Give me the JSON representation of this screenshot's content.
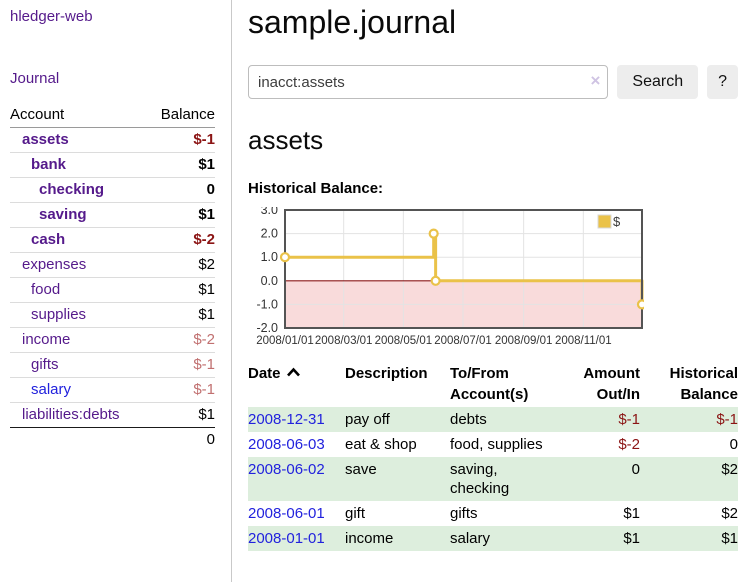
{
  "app": {
    "title": "hledger-web"
  },
  "sidebar": {
    "journal_link": "Journal",
    "accounts": {
      "header_account": "Account",
      "header_balance": "Balance",
      "rows": [
        {
          "name": "assets",
          "level": 1,
          "bold": true,
          "link": "purple",
          "balance": "$-1",
          "tone": "neg-strong"
        },
        {
          "name": "bank",
          "level": 2,
          "bold": true,
          "link": "purple",
          "balance": "$1",
          "tone": "plain"
        },
        {
          "name": "checking",
          "level": 3,
          "bold": true,
          "link": "purple",
          "balance": "0",
          "tone": "plain"
        },
        {
          "name": "saving",
          "level": 3,
          "bold": true,
          "link": "purple",
          "balance": "$1",
          "tone": "plain"
        },
        {
          "name": "cash",
          "level": 2,
          "bold": true,
          "link": "purple",
          "balance": "$-2",
          "tone": "neg-strong"
        },
        {
          "name": "expenses",
          "level": 1,
          "bold": false,
          "link": "purple",
          "balance": "$2",
          "tone": "plain"
        },
        {
          "name": "food",
          "level": 2,
          "bold": false,
          "link": "purple",
          "balance": "$1",
          "tone": "plain"
        },
        {
          "name": "supplies",
          "level": 2,
          "bold": false,
          "link": "purple",
          "balance": "$1",
          "tone": "plain"
        },
        {
          "name": "income",
          "level": 1,
          "bold": false,
          "link": "purple",
          "balance": "$-2",
          "tone": "neg-soft"
        },
        {
          "name": "gifts",
          "level": 2,
          "bold": false,
          "link": "purple",
          "balance": "$-1",
          "tone": "neg-soft"
        },
        {
          "name": "salary",
          "level": 2,
          "bold": false,
          "link": "blue",
          "balance": "$-1",
          "tone": "neg-soft"
        },
        {
          "name": "liabilities:debts",
          "level": 1,
          "bold": false,
          "link": "purple",
          "balance": "$1",
          "tone": "plain"
        }
      ],
      "total": "0"
    }
  },
  "main": {
    "title": "sample.journal",
    "search": {
      "value": "inacct:assets",
      "clear_icon": "×",
      "search_button": "Search",
      "help_button": "?"
    },
    "account_heading": "assets",
    "chart_heading": "Historical Balance:"
  },
  "chart_data": {
    "type": "line",
    "subtype": "step-after",
    "title": "Historical Balance",
    "x_range": [
      "2008-01-01",
      "2008-12-31"
    ],
    "ylim": [
      -2,
      3
    ],
    "yticks": [
      3,
      2,
      1,
      0,
      -1,
      -2
    ],
    "xticks": [
      {
        "value": "2008-01-01",
        "label": "2008/01/01"
      },
      {
        "value": "2008-03-01",
        "label": "2008/03/01"
      },
      {
        "value": "2008-05-01",
        "label": "2008/05/01"
      },
      {
        "value": "2008-07-01",
        "label": "2008/07/01"
      },
      {
        "value": "2008-09-01",
        "label": "2008/09/01"
      },
      {
        "value": "2008-11-01",
        "label": "2008/11/01"
      }
    ],
    "grid": true,
    "legend": {
      "position": "top-right",
      "entries": [
        "$"
      ]
    },
    "series": [
      {
        "name": "$",
        "points": [
          {
            "x": "2008-01-01",
            "y": 1
          },
          {
            "x": "2008-06-01",
            "y": 2
          },
          {
            "x": "2008-06-03",
            "y": 0
          },
          {
            "x": "2008-12-31",
            "y": -1
          }
        ]
      }
    ],
    "colors": {
      "series": "#EAC249",
      "negative_region": "#F9DBDB",
      "zero_line": "#8B1A1A",
      "grid_line": "#e3e3e3",
      "border": "#545454"
    }
  },
  "register": {
    "headers": {
      "date": "Date",
      "description": "Description",
      "accounts": "To/From\nAccount(s)",
      "amount": "Amount\nOut/In",
      "balance": "Historical\nBalance"
    },
    "sort_icon": "chevron-up",
    "rows": [
      {
        "date": "2008-12-31",
        "description": "pay off",
        "accounts": "debts",
        "amount": "$-1",
        "amount_tone": "neg",
        "balance": "$-1",
        "balance_tone": "neg",
        "shaded": true
      },
      {
        "date": "2008-06-03",
        "description": "eat & shop",
        "accounts": "food, supplies",
        "amount": "$-2",
        "amount_tone": "neg",
        "balance": "0",
        "balance_tone": "plain",
        "shaded": false
      },
      {
        "date": "2008-06-02",
        "description": "save",
        "accounts": "saving, checking",
        "amount": "0",
        "amount_tone": "plain",
        "balance": "$2",
        "balance_tone": "plain",
        "shaded": true
      },
      {
        "date": "2008-06-01",
        "description": "gift",
        "accounts": "gifts",
        "amount": "$1",
        "amount_tone": "plain",
        "balance": "$2",
        "balance_tone": "plain",
        "shaded": false
      },
      {
        "date": "2008-01-01",
        "description": "income",
        "accounts": "salary",
        "amount": "$1",
        "amount_tone": "plain",
        "balance": "$1",
        "balance_tone": "plain",
        "shaded": true
      }
    ]
  },
  "colors": {
    "link_purple": "#551A8B",
    "link_blue": "#2222DD",
    "negative_strong": "#8B1414",
    "negative_soft": "#C17070",
    "row_green": "#DDEEDD",
    "button_bg": "#EDEDED"
  }
}
